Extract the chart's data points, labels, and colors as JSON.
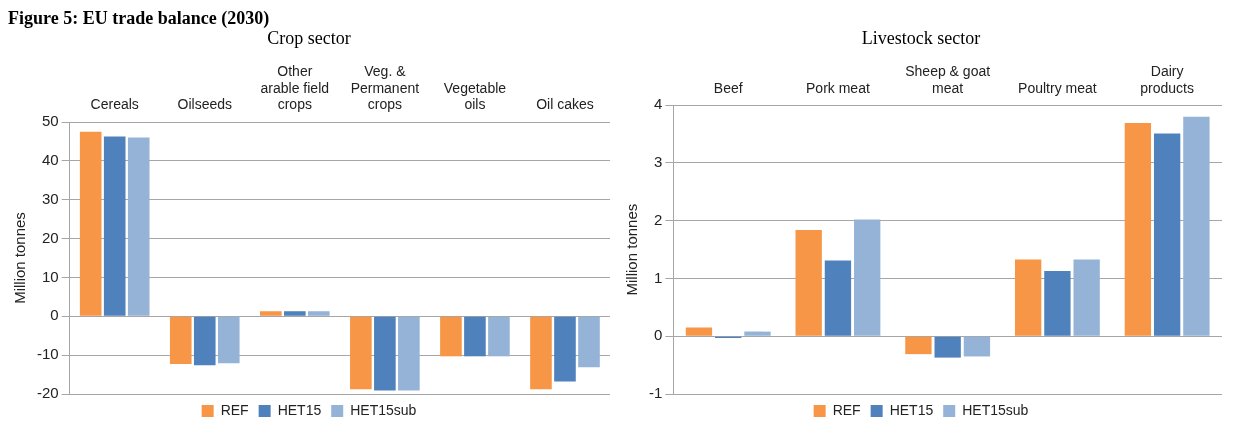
{
  "chart_data": [
    {
      "type": "bar",
      "title": "Crop sector",
      "annotations": [
        "Figure 5: EU trade balance (2030)"
      ],
      "ylabel": "Million tonnes",
      "categories": [
        "Cereals",
        "Oilseeds",
        "Other\narable field\ncrops",
        "Veg. &\nPermanent\ncrops",
        "Vegetable\noils",
        "Oil cakes"
      ],
      "series": [
        {
          "name": "REF",
          "color": "#f79646",
          "values": [
            47.5,
            -12.3,
            1.3,
            -18.8,
            -10.3,
            -18.8
          ]
        },
        {
          "name": "HET15",
          "color": "#4f81bd",
          "values": [
            46.3,
            -12.6,
            1.3,
            -19.1,
            -10.3,
            -16.8
          ]
        },
        {
          "name": "HET15sub",
          "color": "#95b3d7",
          "values": [
            46.0,
            -12.1,
            1.3,
            -19.1,
            -10.3,
            -13.1
          ]
        }
      ],
      "ylim": [
        -20,
        50
      ],
      "yticks": [
        -20,
        -10,
        0,
        10,
        20,
        30,
        40,
        50
      ],
      "grid": "y",
      "legend": "bottom"
    },
    {
      "type": "bar",
      "title": "Livestock sector",
      "ylabel": "Million tonnes",
      "categories": [
        "Beef",
        "Pork meat",
        "Sheep & goat\nmeat",
        "Poultry meat",
        "Dairy\nproducts"
      ],
      "series": [
        {
          "name": "REF",
          "color": "#f79646",
          "values": [
            0.15,
            1.84,
            -0.31,
            1.33,
            3.69
          ]
        },
        {
          "name": "HET15",
          "color": "#4f81bd",
          "values": [
            -0.03,
            1.31,
            -0.37,
            1.13,
            3.51
          ]
        },
        {
          "name": "HET15sub",
          "color": "#95b3d7",
          "values": [
            0.08,
            2.02,
            -0.35,
            1.33,
            3.8
          ]
        }
      ],
      "ylim": [
        -1,
        4
      ],
      "yticks": [
        -1,
        0,
        1,
        2,
        3,
        4
      ],
      "grid": "y",
      "legend": "bottom"
    }
  ]
}
